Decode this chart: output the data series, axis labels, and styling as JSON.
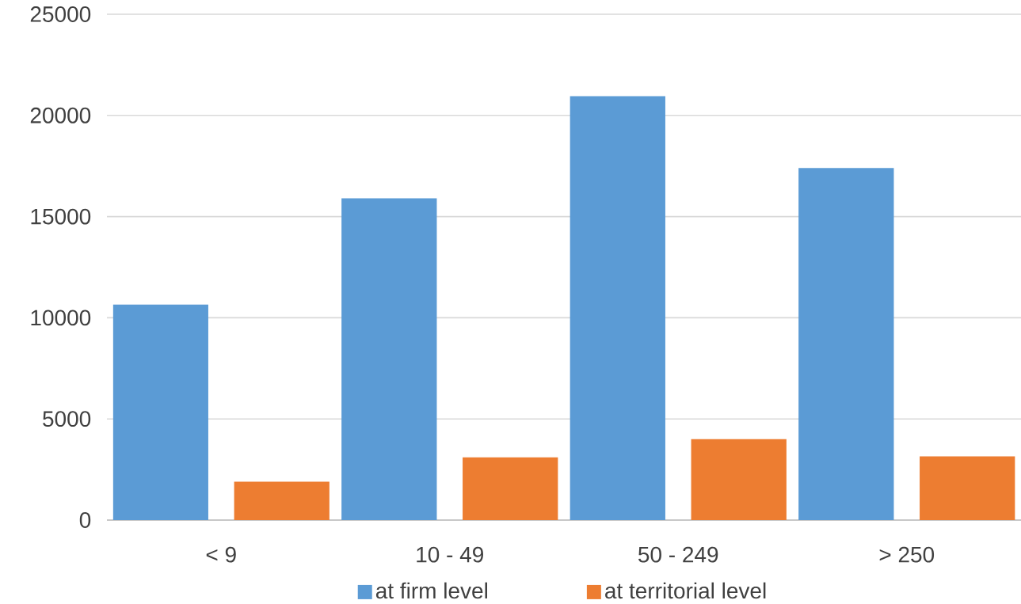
{
  "chart_data": {
    "type": "bar",
    "categories": [
      "< 9",
      "10 - 49",
      "50 - 249",
      "> 250"
    ],
    "series": [
      {
        "name": "at firm level",
        "color": "#5b9bd5",
        "values": [
          10650,
          15900,
          20950,
          17400
        ]
      },
      {
        "name": "at territorial level",
        "color": "#ed7d31",
        "values": [
          1900,
          3100,
          4000,
          3150
        ]
      }
    ],
    "ylim": [
      0,
      25000
    ],
    "yticks": [
      0,
      5000,
      10000,
      15000,
      20000,
      25000
    ],
    "grid": "y",
    "legend": "bottom"
  }
}
